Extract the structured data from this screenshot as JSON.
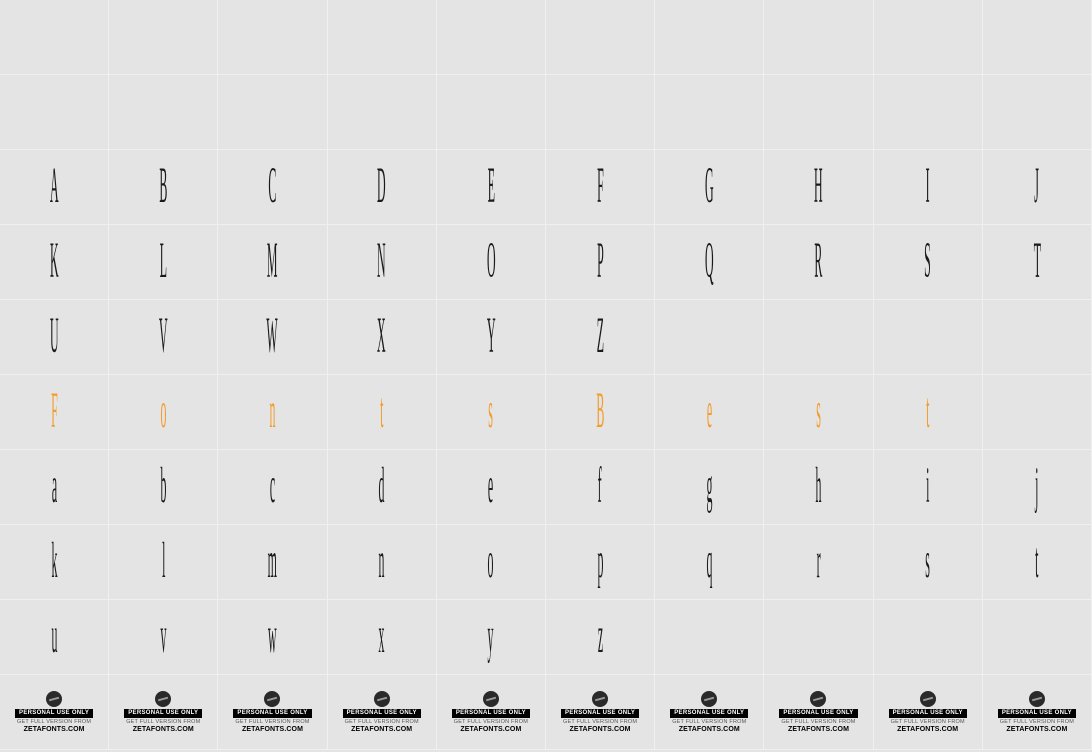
{
  "grid": {
    "columns": 10,
    "rows": 10,
    "cell_border_color": "#f0f0f0",
    "background_color": "#e4e4e4",
    "glyph_color": "#1a1a1a",
    "accent_color": "#f39c2e",
    "glyph_fontsize": 34,
    "glyph_scale_x": 0.35,
    "glyph_scale_y": 1.5
  },
  "rows": [
    {
      "type": "empty"
    },
    {
      "type": "empty"
    },
    {
      "type": "glyphs",
      "cells": [
        "A",
        "B",
        "C",
        "D",
        "E",
        "F",
        "G",
        "H",
        "I",
        "J"
      ],
      "accent": false
    },
    {
      "type": "glyphs",
      "cells": [
        "K",
        "L",
        "M",
        "N",
        "O",
        "P",
        "Q",
        "R",
        "S",
        "T"
      ],
      "accent": false
    },
    {
      "type": "glyphs",
      "cells": [
        "U",
        "V",
        "W",
        "X",
        "Y",
        "Z",
        "",
        "",
        "",
        ""
      ],
      "accent": false
    },
    {
      "type": "glyphs",
      "cells": [
        "F",
        "o",
        "n",
        "t",
        "s",
        "B",
        "e",
        "s",
        "t",
        ""
      ],
      "accent": true
    },
    {
      "type": "glyphs",
      "cells": [
        "a",
        "b",
        "c",
        "d",
        "e",
        "f",
        "g",
        "h",
        "i",
        "j"
      ],
      "accent": false
    },
    {
      "type": "glyphs",
      "cells": [
        "k",
        "l",
        "m",
        "n",
        "o",
        "p",
        "q",
        "r",
        "s",
        "t"
      ],
      "accent": false
    },
    {
      "type": "glyphs",
      "cells": [
        "u",
        "v",
        "w",
        "x",
        "y",
        "z",
        "",
        "",
        "",
        ""
      ],
      "accent": false
    },
    {
      "type": "badge"
    }
  ],
  "badge": {
    "bar_text": "PERSONAL USE ONLY",
    "line1": "GET FULL VERSION FROM",
    "line2": "ZETAFONTS.COM",
    "bar_bg": "#000000",
    "bar_fg": "#ffffff",
    "line1_color": "#555555",
    "line2_color": "#000000"
  }
}
